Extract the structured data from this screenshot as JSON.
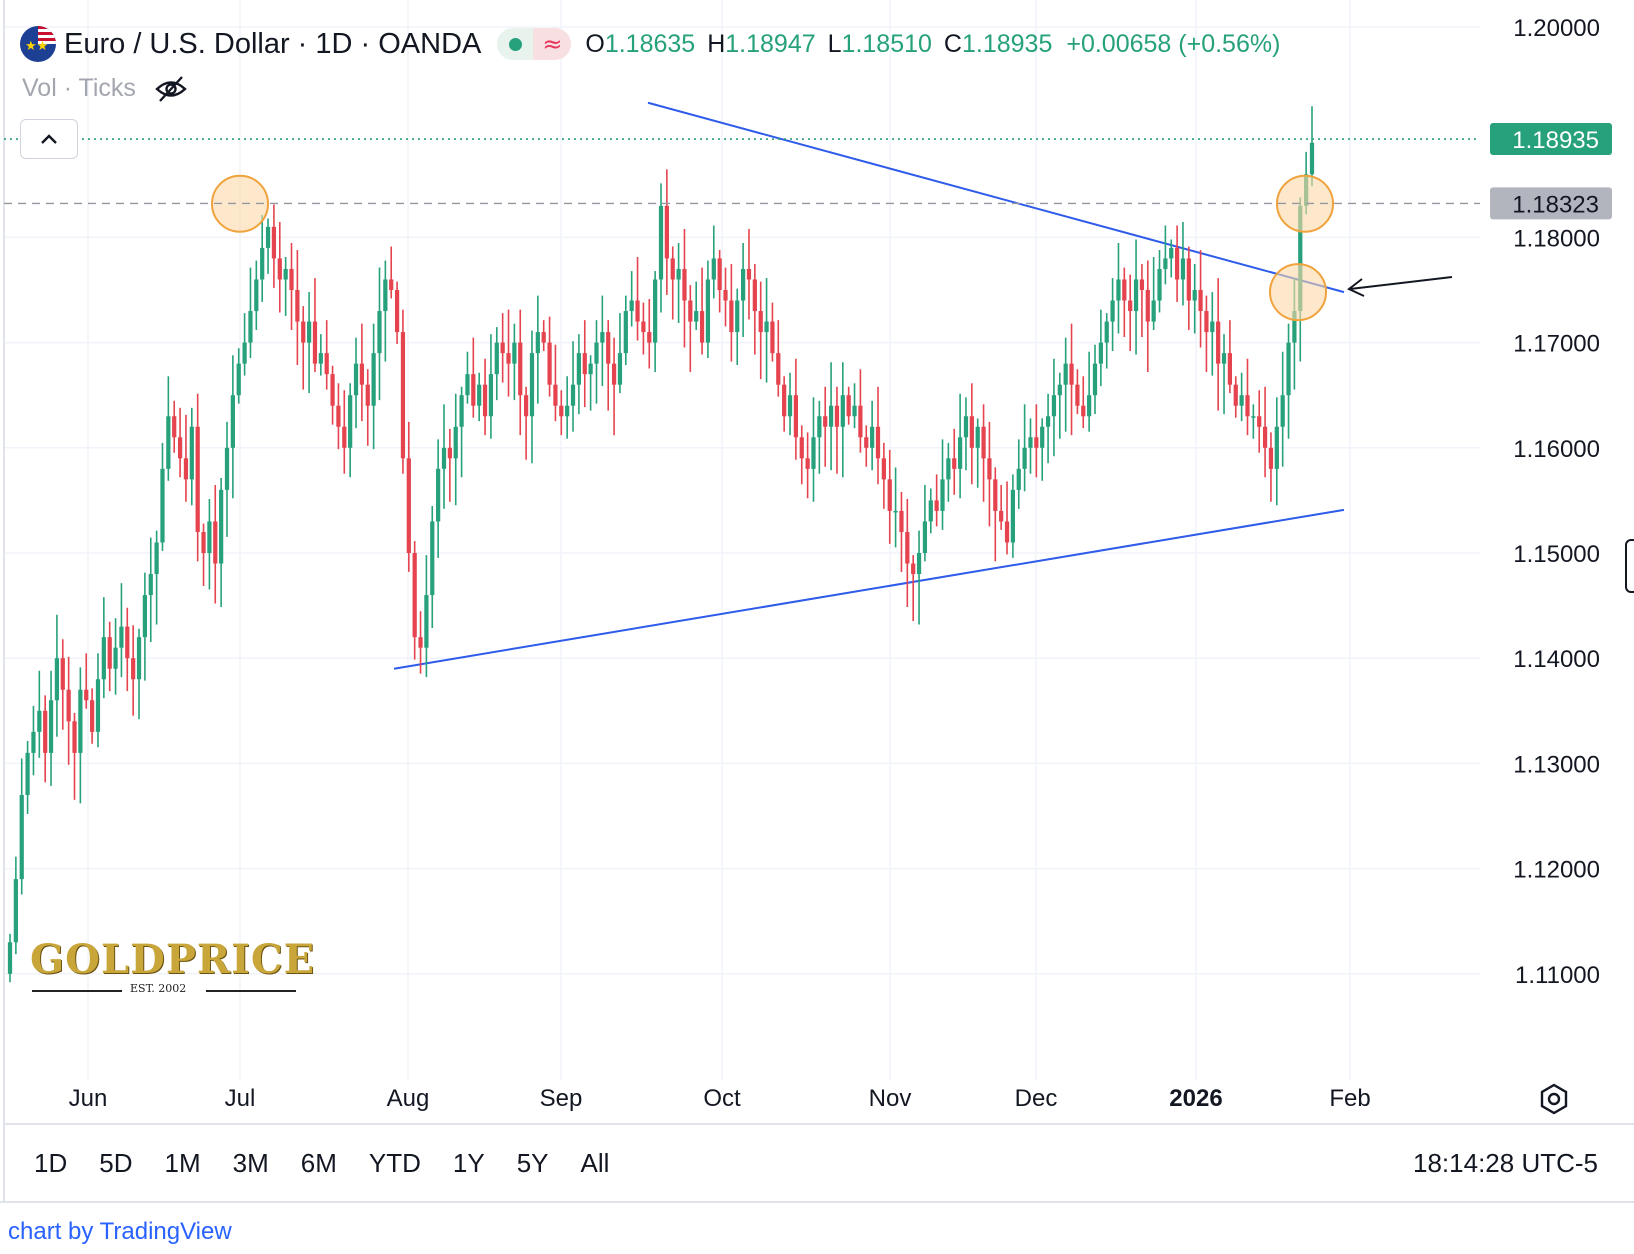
{
  "header": {
    "title": "Euro / U.S. Dollar · 1D · OANDA",
    "ohlc": [
      {
        "key": "O",
        "value": "1.18635"
      },
      {
        "key": "H",
        "value": "1.18947"
      },
      {
        "key": "L",
        "value": "1.18510"
      },
      {
        "key": "C",
        "value": "1.18935"
      }
    ],
    "change": "+0.00658 (+0.56%)",
    "volume_label": "Vol · Ticks",
    "wave_glyph": "≈"
  },
  "colors": {
    "up": "#26a17b",
    "down": "#e5434e",
    "trendline": "#2e5bea",
    "circle_fill": "#fbd9a8",
    "circle_stroke": "#f0a23c",
    "last_price_label": "#26a17b",
    "marker_label": "#b2b5be"
  },
  "chart_data": {
    "type": "candlestick",
    "symbol": "EURUSD",
    "interval": "1D",
    "ylim": [
      1.105,
      1.202
    ],
    "y_ticks": [
      "1.20000",
      "1.18000",
      "1.17000",
      "1.16000",
      "1.15000",
      "1.14000",
      "1.13000",
      "1.12000",
      "1.11000"
    ],
    "x_labels": [
      "Jun",
      "Jul",
      "Aug",
      "Sep",
      "Oct",
      "Nov",
      "Dec",
      "2026",
      "Feb"
    ],
    "last_price": "1.18935",
    "marker_price": "1.18323",
    "grid": true,
    "close_series": [
      1.113,
      1.119,
      1.127,
      1.131,
      1.133,
      1.135,
      1.131,
      1.136,
      1.14,
      1.137,
      1.134,
      1.131,
      1.137,
      1.136,
      1.133,
      1.138,
      1.142,
      1.139,
      1.141,
      1.143,
      1.14,
      1.138,
      1.142,
      1.146,
      1.148,
      1.151,
      1.158,
      1.163,
      1.161,
      1.159,
      1.157,
      1.162,
      1.152,
      1.15,
      1.153,
      1.149,
      1.156,
      1.16,
      1.165,
      1.168,
      1.17,
      1.173,
      1.176,
      1.179,
      1.181,
      1.178,
      1.176,
      1.177,
      1.175,
      1.172,
      1.17,
      1.172,
      1.168,
      1.169,
      1.167,
      1.164,
      1.162,
      1.16,
      1.165,
      1.168,
      1.166,
      1.164,
      1.169,
      1.173,
      1.176,
      1.175,
      1.171,
      1.159,
      1.15,
      1.142,
      1.141,
      1.146,
      1.153,
      1.158,
      1.16,
      1.159,
      1.162,
      1.165,
      1.167,
      1.164,
      1.166,
      1.163,
      1.167,
      1.17,
      1.169,
      1.168,
      1.17,
      1.165,
      1.163,
      1.169,
      1.171,
      1.17,
      1.166,
      1.164,
      1.163,
      1.164,
      1.166,
      1.169,
      1.167,
      1.168,
      1.17,
      1.171,
      1.168,
      1.166,
      1.169,
      1.173,
      1.174,
      1.172,
      1.171,
      1.17,
      1.176,
      1.183,
      1.178,
      1.176,
      1.177,
      1.174,
      1.172,
      1.173,
      1.17,
      1.176,
      1.178,
      1.175,
      1.174,
      1.171,
      1.174,
      1.177,
      1.176,
      1.173,
      1.171,
      1.172,
      1.169,
      1.166,
      1.163,
      1.165,
      1.161,
      1.159,
      1.158,
      1.161,
      1.163,
      1.162,
      1.164,
      1.162,
      1.165,
      1.163,
      1.164,
      1.161,
      1.16,
      1.162,
      1.159,
      1.157,
      1.154,
      1.154,
      1.152,
      1.149,
      1.148,
      1.15,
      1.153,
      1.155,
      1.154,
      1.157,
      1.159,
      1.158,
      1.161,
      1.163,
      1.16,
      1.162,
      1.159,
      1.157,
      1.154,
      1.153,
      1.151,
      1.156,
      1.158,
      1.16,
      1.161,
      1.16,
      1.162,
      1.163,
      1.165,
      1.166,
      1.168,
      1.166,
      1.164,
      1.163,
      1.165,
      1.168,
      1.17,
      1.172,
      1.174,
      1.176,
      1.174,
      1.173,
      1.176,
      1.175,
      1.172,
      1.174,
      1.177,
      1.178,
      1.179,
      1.176,
      1.178,
      1.174,
      1.175,
      1.173,
      1.171,
      1.172,
      1.168,
      1.169,
      1.166,
      1.164,
      1.165,
      1.163,
      1.163,
      1.162,
      1.16,
      1.158,
      1.162,
      1.165,
      1.17,
      1.173,
      1.183,
      1.186,
      1.189
    ]
  },
  "footer": {
    "periods": [
      "1D",
      "5D",
      "1M",
      "3M",
      "6M",
      "YTD",
      "1Y",
      "5Y",
      "All"
    ],
    "clock": "18:14:28 UTC-5",
    "credit": "chart by TradingView"
  },
  "logo": {
    "word": "GOLDPRICE",
    "est": "EST. 2002"
  }
}
